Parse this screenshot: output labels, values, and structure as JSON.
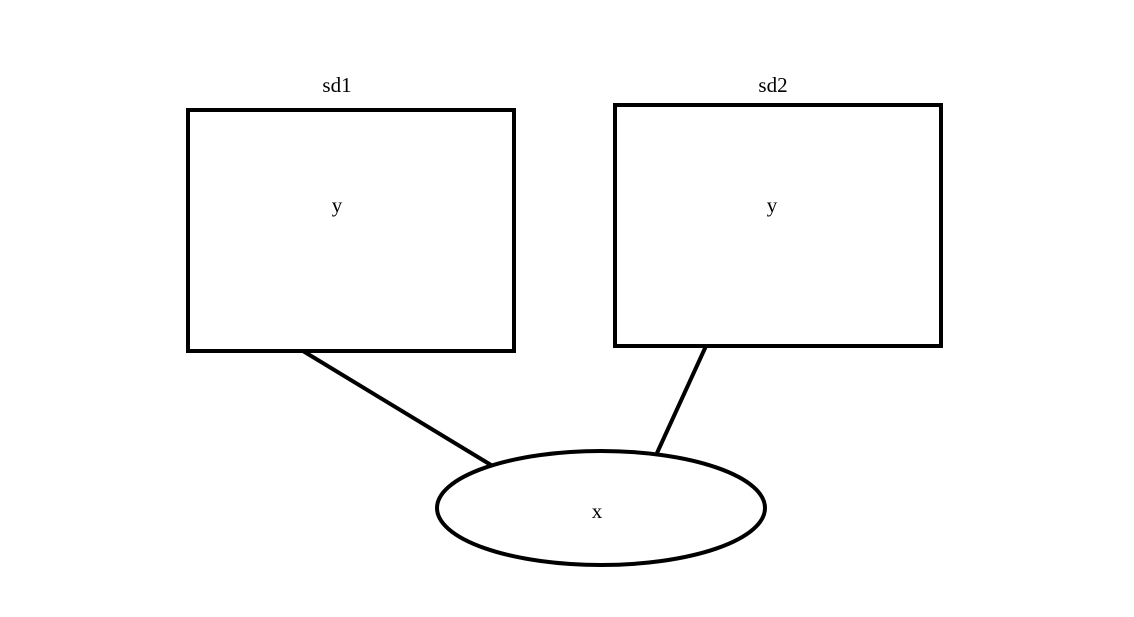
{
  "diagram": {
    "nodes": {
      "sd1": {
        "title": "sd1",
        "content": "y",
        "shape": "rectangle"
      },
      "sd2": {
        "title": "sd2",
        "content": "y",
        "shape": "rectangle"
      },
      "x": {
        "content": "x",
        "shape": "ellipse"
      }
    },
    "edges": [
      {
        "from": "sd1",
        "to": "x"
      },
      {
        "from": "sd2",
        "to": "x"
      }
    ],
    "colors": {
      "stroke": "#000000",
      "fill": "#ffffff",
      "background": "#ffffff"
    }
  }
}
